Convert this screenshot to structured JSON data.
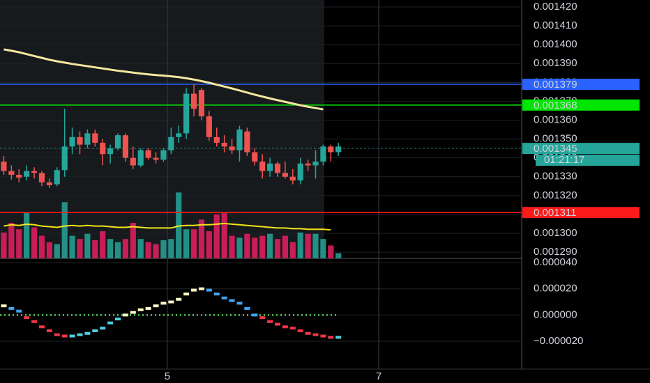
{
  "chart_data": {
    "type": "candlestick",
    "candles": [
      [
        0.001338,
        0.001341,
        0.001331,
        0.001333
      ],
      [
        0.001333,
        0.001336,
        0.0013285,
        0.001331
      ],
      [
        0.001331,
        0.001334,
        0.001327,
        0.0013295
      ],
      [
        0.00133,
        0.001336,
        0.001328,
        0.001333
      ],
      [
        0.001333,
        0.001335,
        0.001329,
        0.001332
      ],
      [
        0.001332,
        0.001333,
        0.001325,
        0.001327
      ],
      [
        0.001327,
        0.001329,
        0.001324,
        0.0013255
      ],
      [
        0.001326,
        0.001335,
        0.001325,
        0.0013335
      ],
      [
        0.0013335,
        0.001366,
        0.00133,
        0.001346
      ],
      [
        0.001346,
        0.001356,
        0.001342,
        0.001351
      ],
      [
        0.001351,
        0.001354,
        0.001342,
        0.001347
      ],
      [
        0.001347,
        0.001355,
        0.001345,
        0.001353
      ],
      [
        0.001353,
        0.001355,
        0.001346,
        0.001348
      ],
      [
        0.001348,
        0.00135,
        0.001336,
        0.001342
      ],
      [
        0.001342,
        0.001347,
        0.001337,
        0.001345
      ],
      [
        0.001345,
        0.001353,
        0.001344,
        0.001352
      ],
      [
        0.001352,
        0.001353,
        0.001338,
        0.00134
      ],
      [
        0.00134,
        0.001346,
        0.001334,
        0.001336
      ],
      [
        0.001336,
        0.001345,
        0.001335,
        0.001344
      ],
      [
        0.001344,
        0.001345,
        0.001339,
        0.00134
      ],
      [
        0.00134,
        0.001343,
        0.001337,
        0.001339
      ],
      [
        0.001339,
        0.001345,
        0.001338,
        0.001344
      ],
      [
        0.001344,
        0.001356,
        0.001342,
        0.001351
      ],
      [
        0.001351,
        0.001357,
        0.001348,
        0.001353
      ],
      [
        0.001353,
        0.001377,
        0.00135,
        0.001374
      ],
      [
        0.001374,
        0.001379,
        0.001362,
        0.001366
      ],
      [
        0.001376,
        0.001377,
        0.00136,
        0.001362
      ],
      [
        0.001362,
        0.001365,
        0.001349,
        0.001351
      ],
      [
        0.001351,
        0.001356,
        0.001346,
        0.001348
      ],
      [
        0.001348,
        0.001352,
        0.001343,
        0.001346
      ],
      [
        0.001346,
        0.00135,
        0.001342,
        0.001344
      ],
      [
        0.001344,
        0.001357,
        0.001338,
        0.001355
      ],
      [
        0.001354,
        0.001356,
        0.001341,
        0.001343
      ],
      [
        0.001343,
        0.001345,
        0.001336,
        0.001338
      ],
      [
        0.001338,
        0.001342,
        0.001329,
        0.001333
      ],
      [
        0.001333,
        0.00134,
        0.00133,
        0.001337
      ],
      [
        0.001337,
        0.001338,
        0.00133,
        0.001332
      ],
      [
        0.001332,
        0.001338,
        0.001329,
        0.00133
      ],
      [
        0.00133,
        0.001334,
        0.001326,
        0.001328
      ],
      [
        0.001328,
        0.00134,
        0.001326,
        0.001337
      ],
      [
        0.001337,
        0.001339,
        0.001333,
        0.001336
      ],
      [
        0.001336,
        0.001344,
        0.001329,
        0.001338
      ],
      [
        0.001338,
        0.001347,
        0.001336,
        0.001346
      ],
      [
        0.001346,
        0.001347,
        0.001338,
        0.001343
      ],
      [
        0.001343,
        0.001348,
        0.001341,
        0.001346
      ]
    ],
    "up_color": "#26a69a",
    "down_color": "#ef5350",
    "ma": [
      0.0013975,
      0.0013968,
      0.001396,
      0.001395,
      0.001394,
      0.001393,
      0.001392,
      0.0013912,
      0.0013905,
      0.0013898,
      0.0013892,
      0.0013886,
      0.001388,
      0.0013874,
      0.0013868,
      0.0013862,
      0.0013857,
      0.0013852,
      0.0013847,
      0.0013843,
      0.0013839,
      0.0013836,
      0.0013832,
      0.0013828,
      0.0013822,
      0.0013815,
      0.0013807,
      0.0013798,
      0.0013788,
      0.0013778,
      0.0013768,
      0.0013757,
      0.0013746,
      0.0013735,
      0.0013725,
      0.0013715,
      0.0013706,
      0.0013697,
      0.0013688,
      0.0013679,
      0.0013671,
      0.0013664,
      0.0013657,
      null,
      null
    ],
    "ma_color": "#f5e79e",
    "volume": [
      40,
      55,
      45,
      70,
      48,
      35,
      25,
      22,
      87,
      35,
      30,
      38,
      28,
      42,
      30,
      25,
      30,
      55,
      30,
      25,
      22,
      28,
      30,
      102,
      45,
      45,
      60,
      42,
      68,
      70,
      35,
      32,
      38,
      32,
      35,
      38,
      30,
      35,
      25,
      40,
      38,
      38,
      30,
      20,
      8
    ],
    "volume_ma": [
      50,
      52,
      51,
      53,
      52,
      50,
      49,
      48,
      50,
      51,
      50,
      51,
      50,
      50,
      49,
      48,
      48,
      49,
      48,
      47,
      47,
      47,
      47,
      50,
      51,
      51,
      52,
      52,
      53,
      54,
      53,
      52,
      51,
      50,
      49,
      48,
      47,
      47,
      46,
      46,
      45,
      45,
      45,
      44,
      null
    ],
    "volume_lim": [
      0,
      400
    ],
    "volume_ma_color": "#f5e418",
    "oscillator": [
      7e-06,
      5e-06,
      3e-06,
      -2e-06,
      -5e-06,
      -9e-06,
      -1.2e-05,
      -1.5e-05,
      -1.6e-05,
      -1.6e-05,
      -1.5e-05,
      -1.4e-05,
      -1.2e-05,
      -1e-05,
      -6e-06,
      -3e-06,
      0,
      2e-06,
      4e-06,
      5e-06,
      7e-06,
      9e-06,
      1e-05,
      1.2e-05,
      1.6e-05,
      1.9e-05,
      2e-05,
      1.9e-05,
      1.6e-05,
      1.3e-05,
      1.1e-05,
      9e-06,
      5e-06,
      0,
      -2e-06,
      -5e-06,
      -7e-06,
      -9e-06,
      -1e-05,
      -1.2e-05,
      -1.4e-05,
      -1.5e-05,
      -1.6e-05,
      -1.7e-05,
      -1.7e-05
    ],
    "osc_colors": {
      "up_pos": "#fff9c4",
      "down_pos": "#42a5f5",
      "down_neg": "#f23645",
      "up_neg": "#4dd0e1",
      "zero": "#4caf50"
    },
    "xlim": [
      -0.5,
      68.1
    ],
    "xticks": [
      {
        "value": 21.5,
        "label": "5"
      },
      {
        "value": 49.3,
        "label": "7"
      }
    ],
    "ylim": [
      0.0012867,
      0.0014237
    ],
    "yticks": [
      {
        "value": 0.00142,
        "label": "0.001420"
      },
      {
        "value": 0.00141,
        "label": "0.001410"
      },
      {
        "value": 0.0014,
        "label": "0.001400"
      },
      {
        "value": 0.00139,
        "label": "0.001390"
      },
      {
        "value": 0.00138,
        "label": "0.001380"
      },
      {
        "value": 0.00137,
        "label": "0.001370"
      },
      {
        "value": 0.00136,
        "label": "0.001360"
      },
      {
        "value": 0.00135,
        "label": "0.001350"
      },
      {
        "value": 0.00134,
        "label": "0.001340"
      },
      {
        "value": 0.00133,
        "label": "0.001330"
      },
      {
        "value": 0.00132,
        "label": "0.001320"
      },
      {
        "value": 0.00131,
        "label": "0.001310"
      },
      {
        "value": 0.0013,
        "label": "0.001300"
      },
      {
        "value": 0.00129,
        "label": "0.001290"
      }
    ],
    "y2lim": [
      -4.12e-05,
      4.32e-05
    ],
    "y2ticks": [
      {
        "value": 4e-05,
        "label": "0.000040"
      },
      {
        "value": 2e-05,
        "label": "0.000020"
      },
      {
        "value": 0,
        "label": "0.000000"
      },
      {
        "value": -2e-05,
        "label": "−0.000020"
      }
    ],
    "hlines": [
      {
        "value": 0.001379,
        "label": "0.001379",
        "color": "#2962ff"
      },
      {
        "value": 0.001368,
        "label": "0.001368",
        "color": "#00e600"
      },
      {
        "value": 0.001311,
        "label": "0.001311",
        "color": "#ff1a1a"
      },
      {
        "value": 0.001345,
        "label": "0.001345",
        "color": "#26a69a"
      }
    ],
    "countdown": "01:21:17",
    "grid": true
  }
}
